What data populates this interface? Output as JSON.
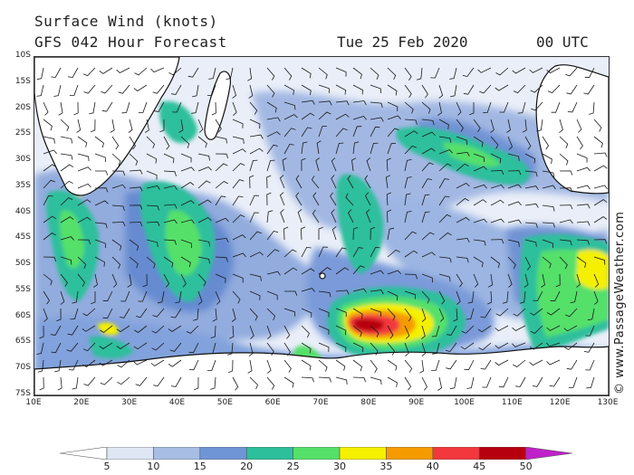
{
  "header": {
    "title": "Surface Wind (knots)",
    "subtitle": "GFS 042 Hour Forecast",
    "date": "Tue 25 Feb 2020",
    "time": "00 UTC"
  },
  "credit": "© www.PassageWeather.com",
  "axes": {
    "latitudes": [
      "10S",
      "15S",
      "20S",
      "25S",
      "30S",
      "35S",
      "40S",
      "45S",
      "50S",
      "55S",
      "60S",
      "65S",
      "70S",
      "75S"
    ],
    "longitudes": [
      "10E",
      "20E",
      "30E",
      "40E",
      "50E",
      "60E",
      "70E",
      "80E",
      "90E",
      "100E",
      "110E",
      "120E",
      "130E"
    ]
  },
  "legend": {
    "labels": [
      "5",
      "10",
      "15",
      "20",
      "25",
      "30",
      "35",
      "40",
      "45",
      "50"
    ],
    "colors": [
      "#ffffff",
      "#dfe6f4",
      "#a7bde4",
      "#6f95d6",
      "#2dbf9c",
      "#55e06a",
      "#f4f000",
      "#f59b00",
      "#f2383d",
      "#b7000f",
      "#c020c8"
    ]
  },
  "colors": {
    "land": "#ffffff",
    "coast": "#111111",
    "calm": "#e9eef8"
  }
}
